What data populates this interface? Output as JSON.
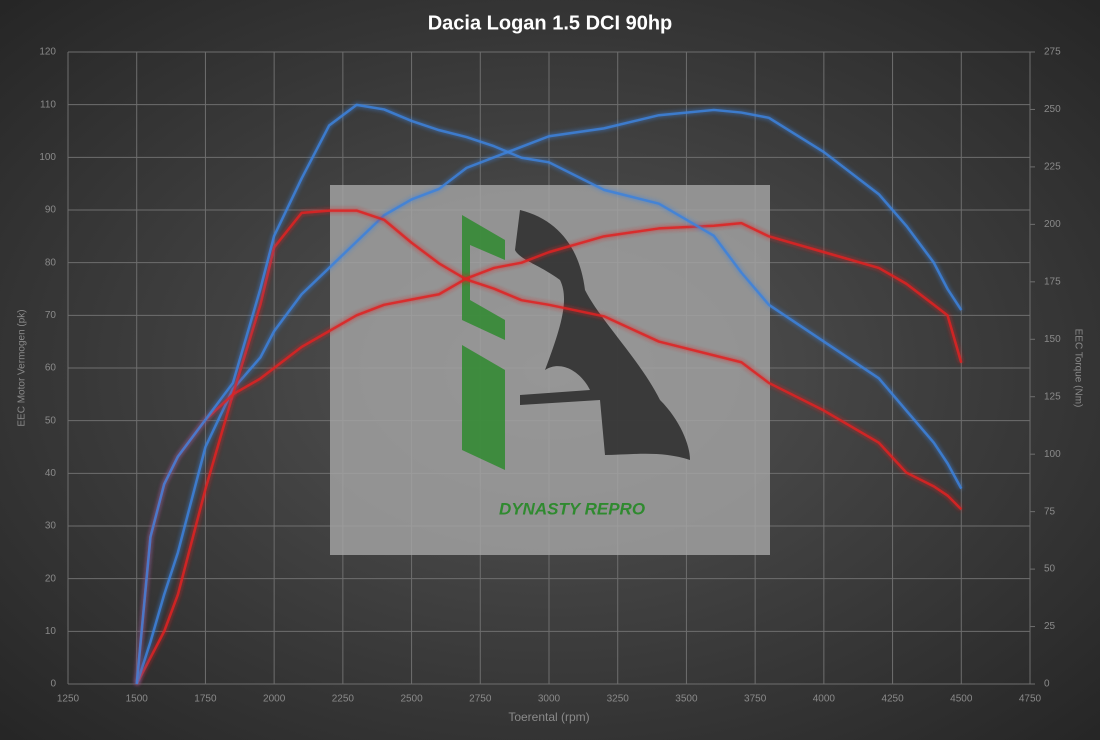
{
  "chart_data": {
    "type": "line",
    "title": "Dacia Logan 1.5 DCI 90hp",
    "x_label": "Toerental (rpm)",
    "y_label": "EEC Motor Vermogen (pk)",
    "y2_label": "EEC Torque (Nm)",
    "watermark": "DYNASTY REPRO",
    "grid": true,
    "x": [
      1500,
      1550,
      1600,
      1650,
      1750,
      1850,
      1950,
      2000,
      2100,
      2200,
      2300,
      2400,
      2500,
      2600,
      2700,
      2800,
      2900,
      3000,
      3200,
      3400,
      3600,
      3700,
      3800,
      4000,
      4200,
      4300,
      4400,
      4450,
      4500
    ],
    "series": [
      {
        "color": "#e02424",
        "values": [
          0,
          5,
          10,
          17,
          37,
          55,
          58,
          60,
          64,
          67,
          70,
          72,
          73,
          74,
          77,
          79,
          80,
          82,
          85,
          86.5,
          87,
          87.5,
          85,
          82,
          79,
          76,
          72,
          70,
          61
        ]
      },
      {
        "color": "#3d82dc",
        "values": [
          0,
          8,
          17,
          25,
          45,
          56,
          62,
          67,
          74,
          79,
          84,
          89,
          92,
          94,
          98,
          100,
          102,
          104,
          105.5,
          108,
          109,
          108.5,
          107.5,
          101,
          93,
          87,
          80,
          75,
          71
        ]
      },
      {
        "color": "#e02424",
        "axis": "y2",
        "values": [
          0,
          64,
          87,
          99,
          115,
          126,
          165,
          190,
          205,
          206,
          206,
          202,
          192,
          183,
          176,
          172,
          167,
          165,
          160,
          149,
          143,
          140,
          131,
          119,
          105,
          92,
          86,
          82,
          76
        ]
      },
      {
        "color": "#3d82dc",
        "axis": "y2",
        "values": [
          0,
          64,
          87,
          99,
          115,
          131,
          172,
          195,
          220,
          243,
          252,
          250,
          245,
          241,
          238,
          234,
          229,
          227,
          215,
          209,
          195,
          179,
          165,
          149,
          133,
          119,
          105,
          96,
          85
        ]
      }
    ],
    "xlim": [
      1250,
      4750
    ],
    "xticks": [
      1250,
      1500,
      1750,
      2000,
      2250,
      2500,
      2750,
      3000,
      3250,
      3500,
      3750,
      4000,
      4250,
      4500,
      4750
    ],
    "ylim": [
      0,
      120
    ],
    "yticks": [
      0,
      10,
      20,
      30,
      40,
      50,
      60,
      70,
      80,
      90,
      100,
      110,
      120
    ],
    "y2lim": [
      0,
      275
    ],
    "y2ticks": [
      0,
      25,
      50,
      75,
      100,
      125,
      150,
      175,
      200,
      225,
      250,
      275
    ]
  }
}
